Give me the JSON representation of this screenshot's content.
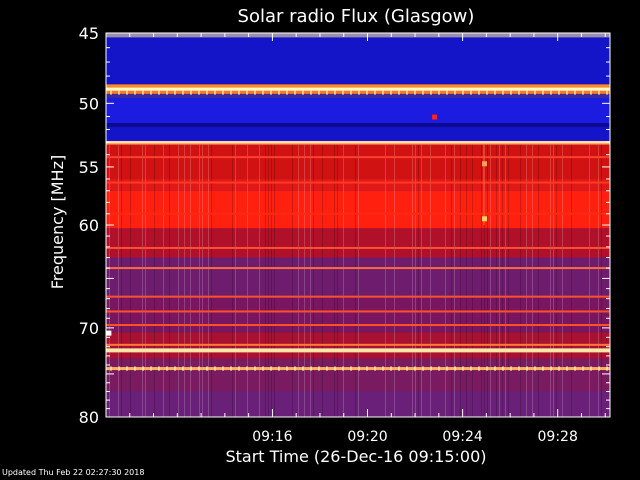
{
  "footer": {
    "updated": "Updated Thu Feb 22 02:27:30 2018"
  },
  "chart_data": {
    "type": "heatmap",
    "title": "Solar radio Flux (Glasgow)",
    "xlabel": "Start Time (26-Dec-16 09:15:00)",
    "ylabel": "Frequency [MHz]",
    "xlim_minutes": [
      9.0,
      30.2
    ],
    "ylim_mhz": [
      45,
      80
    ],
    "y_scale": "log",
    "x_ticks": [
      {
        "minute": 16,
        "label": "09:16"
      },
      {
        "minute": 20,
        "label": "09:20"
      },
      {
        "minute": 24,
        "label": "09:24"
      },
      {
        "minute": 28,
        "label": "09:28"
      }
    ],
    "y_ticks": [
      {
        "mhz": 45,
        "label": "45"
      },
      {
        "mhz": 50,
        "label": "50"
      },
      {
        "mhz": 55,
        "label": "55"
      },
      {
        "mhz": 60,
        "label": "60"
      },
      {
        "mhz": 70,
        "label": "70"
      },
      {
        "mhz": 80,
        "label": "80"
      }
    ],
    "bands": [
      {
        "from": 45.0,
        "to": 45.3,
        "color": "#9b8fae"
      },
      {
        "from": 45.3,
        "to": 48.6,
        "color": "#1414c8"
      },
      {
        "from": 48.6,
        "to": 48.9,
        "color": "#ff8a2a"
      },
      {
        "from": 48.9,
        "to": 49.05,
        "color": "#ffe7a8"
      },
      {
        "from": 49.05,
        "to": 49.3,
        "color": "#ff7a22"
      },
      {
        "from": 49.3,
        "to": 49.6,
        "color": "#3a2aa0"
      },
      {
        "from": 49.6,
        "to": 51.5,
        "color": "#1c1ce0"
      },
      {
        "from": 51.5,
        "to": 51.8,
        "color": "#0a0a90"
      },
      {
        "from": 51.8,
        "to": 52.9,
        "color": "#1414c8"
      },
      {
        "from": 52.9,
        "to": 53.2,
        "color": "#ff9a50"
      },
      {
        "from": 53.2,
        "to": 56.0,
        "color": "#d01212"
      },
      {
        "from": 56.0,
        "to": 57.0,
        "color": "#e01818"
      },
      {
        "from": 57.0,
        "to": 60.3,
        "color": "#ff2010"
      },
      {
        "from": 60.3,
        "to": 63.0,
        "color": "#b0102a"
      },
      {
        "from": 63.0,
        "to": 67.0,
        "color": "#6e1c6e"
      },
      {
        "from": 67.0,
        "to": 70.5,
        "color": "#7a1660"
      },
      {
        "from": 70.5,
        "to": 73.3,
        "color": "#a81230"
      },
      {
        "from": 73.3,
        "to": 77.0,
        "color": "#7a1a60"
      },
      {
        "from": 77.0,
        "to": 80.0,
        "color": "#6a1f78"
      }
    ],
    "lines": [
      {
        "mhz": 48.95,
        "color": "#ffffcc",
        "width": 3
      },
      {
        "mhz": 53.0,
        "color": "#ffe4b0",
        "width": 2
      },
      {
        "mhz": 54.2,
        "color": "#ff4030",
        "width": 2
      },
      {
        "mhz": 56.3,
        "color": "#ff3a20",
        "width": 2
      },
      {
        "mhz": 59.0,
        "color": "#ff2a10",
        "width": 2
      },
      {
        "mhz": 62.1,
        "color": "#ff5030",
        "width": 2
      },
      {
        "mhz": 64.0,
        "color": "#ff6a3a",
        "width": 2
      },
      {
        "mhz": 66.8,
        "color": "#ff5028",
        "width": 2
      },
      {
        "mhz": 68.3,
        "color": "#ff5028",
        "width": 2
      },
      {
        "mhz": 69.7,
        "color": "#ff5028",
        "width": 2
      },
      {
        "mhz": 71.8,
        "color": "#ff7a3a",
        "width": 2
      },
      {
        "mhz": 72.4,
        "color": "#ffe7a8",
        "width": 4
      },
      {
        "mhz": 74.4,
        "color": "#ffb060",
        "width": 3
      }
    ],
    "dotted_rows": [
      {
        "mhz": 49.2,
        "color": "#ffcc66"
      },
      {
        "mhz": 74.4,
        "color": "#ffe08a"
      }
    ],
    "spots": [
      {
        "minute": 22.8,
        "mhz": 51.0,
        "color": "#ff2020"
      },
      {
        "minute": 24.9,
        "mhz": 59.4,
        "color": "#ffd060"
      },
      {
        "minute": 24.9,
        "mhz": 54.7,
        "color": "#ffa050"
      },
      {
        "minute": 9.1,
        "mhz": 70.5,
        "color": "#ffffff"
      }
    ],
    "colors": {
      "background": "#000000",
      "text": "#ffffff",
      "hot": "#ff2010",
      "cold": "#1414c8",
      "warm_line": "#ffe7a8"
    }
  }
}
